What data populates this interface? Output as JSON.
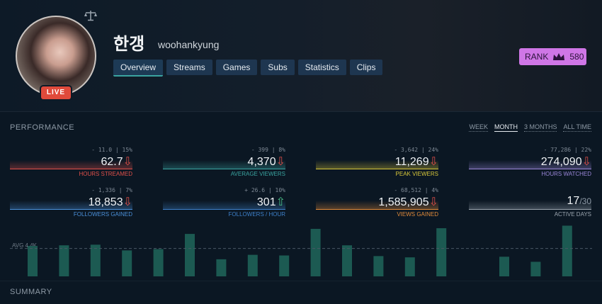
{
  "profile": {
    "name_korean": "한갱",
    "username": "woohankyung",
    "live_badge": "LIVE",
    "avatar_icon": "avatar-photo",
    "scale_icon": "scale-icon"
  },
  "tabs": [
    {
      "label": "Overview",
      "active": true
    },
    {
      "label": "Streams",
      "active": false
    },
    {
      "label": "Games",
      "active": false
    },
    {
      "label": "Subs",
      "active": false
    },
    {
      "label": "Statistics",
      "active": false
    },
    {
      "label": "Clips",
      "active": false
    }
  ],
  "rank": {
    "label": "RANK",
    "value": "580",
    "icon": "crown-icon",
    "color": "#cf76e6"
  },
  "performance": {
    "title": "PERFORMANCE",
    "periods": [
      {
        "label": "WEEK",
        "active": false
      },
      {
        "label": "MONTH",
        "active": true
      },
      {
        "label": "3 MONTHS",
        "active": false
      },
      {
        "label": "ALL TIME",
        "active": false
      }
    ],
    "stats": [
      {
        "sub": "- 11.0 | 15%",
        "value": "62.7",
        "trend": "down",
        "label": "HOURS STREAMED",
        "color": "#e0504a"
      },
      {
        "sub": "- 399 | 8%",
        "value": "4,370",
        "trend": "down",
        "label": "AVERAGE VIEWERS",
        "color": "#3aa4a0"
      },
      {
        "sub": "- 3,642 | 24%",
        "value": "11,269",
        "trend": "down",
        "label": "PEAK VIEWERS",
        "color": "#d7c63a"
      },
      {
        "sub": "- 77,286 | 22%",
        "value": "274,090",
        "trend": "down",
        "label": "HOURS WATCHED",
        "color": "#9a86d8"
      },
      {
        "sub": "- 1,336 | 7%",
        "value": "18,853",
        "trend": "down",
        "label": "FOLLOWERS GAINED",
        "color": "#4a8fd8"
      },
      {
        "sub": "+ 26.6 | 10%",
        "value": "301",
        "trend": "up",
        "label": "FOLLOWERS / HOUR",
        "color": "#3d7fc8"
      },
      {
        "sub": "- 68,512 | 4%",
        "value": "1,585,905",
        "trend": "down",
        "label": "VIEWS GAINED",
        "color": "#e08a3a"
      },
      {
        "sub": "",
        "value": "17",
        "denominator": "/30",
        "trend": "none",
        "label": "ACTIVE DAYS",
        "color": "#9aa4ae"
      }
    ]
  },
  "chart_data": {
    "type": "bar",
    "avg_label": "AVG 4.4K",
    "avg": 4.4,
    "bar_color": "#1c5a52",
    "values": [
      4.8,
      4.9,
      5.0,
      4.1,
      4.3,
      6.7,
      2.7,
      3.4,
      3.3,
      7.5,
      4.9,
      3.2,
      3.0,
      7.6,
      3.1,
      2.3,
      8.0
    ],
    "slots": [
      0,
      1,
      2,
      3,
      4,
      5,
      6,
      7,
      8,
      9,
      10,
      11,
      12,
      13,
      15,
      16,
      17
    ],
    "ylim": [
      0,
      8.5
    ]
  },
  "summary": {
    "title": "SUMMARY"
  },
  "icons": {
    "down": "⇩",
    "up": "⇧"
  }
}
